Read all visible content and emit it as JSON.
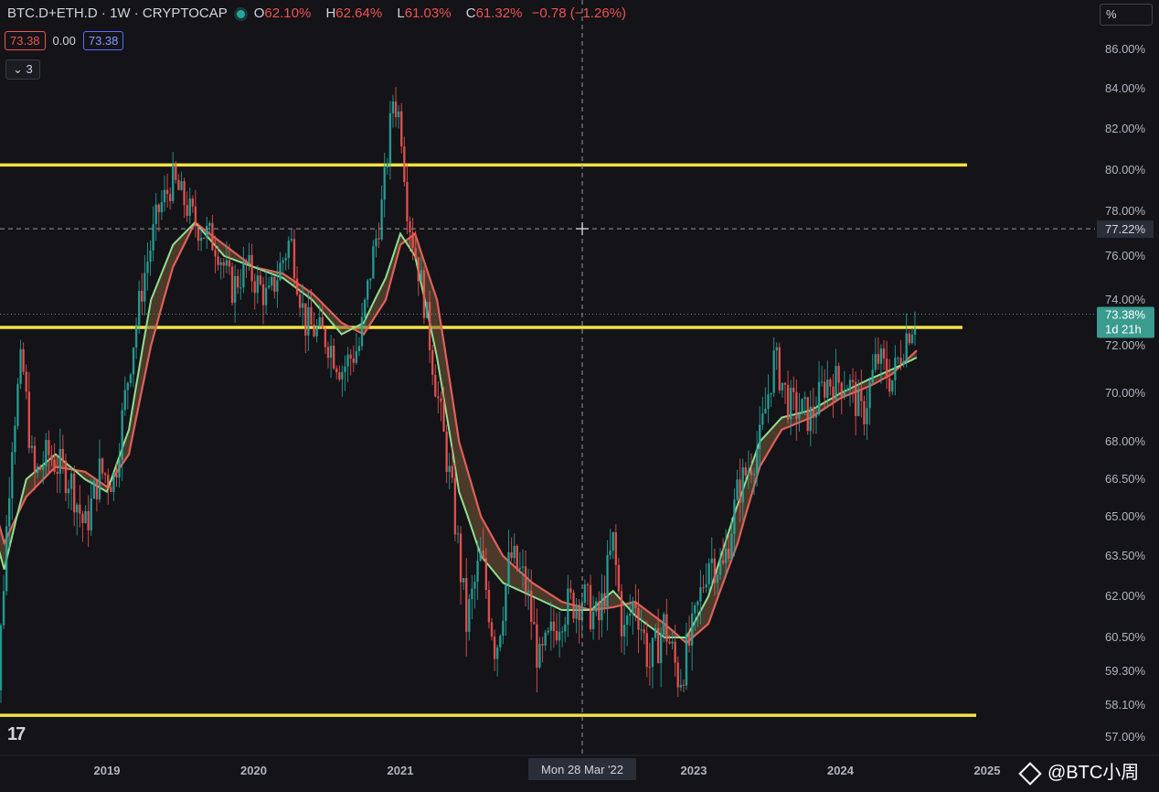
{
  "header": {
    "symbol": "BTC.D+ETH.D · 1W · CRYPTOCAP",
    "open_label": "O",
    "open": "62.10%",
    "high_label": "H",
    "high": "62.64%",
    "low_label": "L",
    "low": "61.03%",
    "close_label": "C",
    "close": "61.32%",
    "change": "−0.78 (−1.26%)"
  },
  "indicator": {
    "value1": "73.38",
    "value2": "0.00",
    "value3": "73.38"
  },
  "collapse_count": "3",
  "scale_mode": "%",
  "watermark": "@BTC小周",
  "colors": {
    "up": "#26a69a",
    "down": "#ef5350",
    "level": "#f2e244",
    "ma_fast": "#8fe08f",
    "ma_slow": "#e0605a"
  },
  "chart_data": {
    "type": "candlestick",
    "y_ticks": [
      "86.00%",
      "84.00%",
      "82.00%",
      "80.00%",
      "78.00%",
      "76.00%",
      "74.00%",
      "72.00%",
      "70.00%",
      "68.00%",
      "66.50%",
      "65.00%",
      "63.50%",
      "62.00%",
      "60.50%",
      "59.30%",
      "58.10%",
      "57.00%"
    ],
    "x_ticks": [
      "2019",
      "2020",
      "2021",
      "2023",
      "2024",
      "2025"
    ],
    "x_tick_years": [
      2019,
      2020,
      2021,
      2023,
      2024,
      2025
    ],
    "crosshair": {
      "x_label": "Mon 28 Mar '22",
      "x_year": 2022.24,
      "y_label": "77.22%",
      "y": 77.22
    },
    "last_price": {
      "value": "73.38%",
      "countdown": "1d 21h",
      "y": 73.38
    },
    "levels": [
      {
        "y": 80.25,
        "x_start": 2018.2,
        "x_end": 2022.6
      },
      {
        "y": 72.8,
        "x_start": 2018.2,
        "x_end": 2022.58
      },
      {
        "y": 57.75,
        "x_start": 2018.2,
        "x_end": 2022.65
      }
    ],
    "price_path": [
      [
        2018.2,
        64.0
      ],
      [
        2018.25,
        58.0
      ],
      [
        2018.35,
        68.0
      ],
      [
        2018.42,
        71.5
      ],
      [
        2018.5,
        66.5
      ],
      [
        2018.6,
        67.5
      ],
      [
        2018.75,
        66.5
      ],
      [
        2018.85,
        64.5
      ],
      [
        2018.95,
        66.8
      ],
      [
        2019.05,
        66.5
      ],
      [
        2019.15,
        71.0
      ],
      [
        2019.25,
        75.0
      ],
      [
        2019.35,
        78.0
      ],
      [
        2019.45,
        79.5
      ],
      [
        2019.6,
        77.5
      ],
      [
        2019.75,
        76.5
      ],
      [
        2019.85,
        74.5
      ],
      [
        2019.95,
        75.5
      ],
      [
        2020.1,
        74.0
      ],
      [
        2020.25,
        76.8
      ],
      [
        2020.35,
        73.0
      ],
      [
        2020.5,
        72.3
      ],
      [
        2020.6,
        71.0
      ],
      [
        2020.72,
        72.0
      ],
      [
        2020.8,
        75.5
      ],
      [
        2020.88,
        78.5
      ],
      [
        2020.95,
        83.5
      ],
      [
        2021.0,
        82.5
      ],
      [
        2021.05,
        78.0
      ],
      [
        2021.15,
        74.5
      ],
      [
        2021.25,
        70.0
      ],
      [
        2021.35,
        66.0
      ],
      [
        2021.45,
        61.0
      ],
      [
        2021.55,
        63.5
      ],
      [
        2021.65,
        60.0
      ],
      [
        2021.75,
        63.5
      ],
      [
        2021.85,
        62.5
      ],
      [
        2021.95,
        59.5
      ],
      [
        2022.1,
        61.5
      ],
      [
        2022.24,
        62.0
      ],
      [
        2022.35,
        61.0
      ],
      [
        2022.45,
        64.0
      ],
      [
        2022.52,
        60.5
      ],
      [
        2022.6,
        62.0
      ],
      [
        2022.7,
        59.5
      ],
      [
        2022.8,
        61.0
      ],
      [
        2022.9,
        59.0
      ],
      [
        2023.0,
        60.8
      ],
      [
        2023.1,
        63.5
      ],
      [
        2023.2,
        63.0
      ],
      [
        2023.3,
        66.0
      ],
      [
        2023.45,
        68.0
      ],
      [
        2023.55,
        71.5
      ],
      [
        2023.65,
        69.5
      ],
      [
        2023.8,
        69.0
      ],
      [
        2023.9,
        70.5
      ],
      [
        2024.05,
        70.5
      ],
      [
        2024.15,
        69.0
      ],
      [
        2024.25,
        71.5
      ],
      [
        2024.35,
        70.5
      ],
      [
        2024.45,
        72.5
      ],
      [
        2024.52,
        73.38
      ]
    ],
    "ma_fast_path": [
      [
        2018.2,
        65.0
      ],
      [
        2018.3,
        63.0
      ],
      [
        2018.45,
        66.5
      ],
      [
        2018.65,
        67.5
      ],
      [
        2018.85,
        66.5
      ],
      [
        2019.0,
        66.0
      ],
      [
        2019.15,
        68.5
      ],
      [
        2019.3,
        74.0
      ],
      [
        2019.45,
        76.5
      ],
      [
        2019.6,
        77.5
      ],
      [
        2019.8,
        76.0
      ],
      [
        2020.0,
        75.5
      ],
      [
        2020.2,
        75.0
      ],
      [
        2020.4,
        74.0
      ],
      [
        2020.6,
        72.5
      ],
      [
        2020.75,
        73.0
      ],
      [
        2020.9,
        75.0
      ],
      [
        2021.0,
        77.0
      ],
      [
        2021.1,
        76.0
      ],
      [
        2021.25,
        71.5
      ],
      [
        2021.4,
        66.0
      ],
      [
        2021.55,
        63.5
      ],
      [
        2021.7,
        62.5
      ],
      [
        2021.9,
        62.0
      ],
      [
        2022.1,
        61.5
      ],
      [
        2022.3,
        61.5
      ],
      [
        2022.45,
        62.2
      ],
      [
        2022.6,
        61.3
      ],
      [
        2022.8,
        60.5
      ],
      [
        2022.95,
        60.5
      ],
      [
        2023.1,
        62.0
      ],
      [
        2023.3,
        65.5
      ],
      [
        2023.45,
        68.0
      ],
      [
        2023.6,
        69.0
      ],
      [
        2023.8,
        69.3
      ],
      [
        2024.0,
        70.0
      ],
      [
        2024.2,
        70.6
      ],
      [
        2024.35,
        71.0
      ],
      [
        2024.52,
        71.5
      ]
    ],
    "ma_slow_path": [
      [
        2018.2,
        66.0
      ],
      [
        2018.3,
        64.0
      ],
      [
        2018.45,
        65.8
      ],
      [
        2018.65,
        67.0
      ],
      [
        2018.85,
        66.8
      ],
      [
        2019.0,
        66.2
      ],
      [
        2019.15,
        67.5
      ],
      [
        2019.3,
        72.0
      ],
      [
        2019.45,
        75.5
      ],
      [
        2019.6,
        77.5
      ],
      [
        2019.8,
        76.5
      ],
      [
        2020.0,
        75.5
      ],
      [
        2020.2,
        75.2
      ],
      [
        2020.4,
        74.3
      ],
      [
        2020.6,
        73.0
      ],
      [
        2020.75,
        72.5
      ],
      [
        2020.9,
        74.0
      ],
      [
        2021.0,
        76.5
      ],
      [
        2021.1,
        77.0
      ],
      [
        2021.25,
        74.0
      ],
      [
        2021.4,
        68.0
      ],
      [
        2021.55,
        65.0
      ],
      [
        2021.7,
        63.5
      ],
      [
        2021.9,
        62.5
      ],
      [
        2022.1,
        61.8
      ],
      [
        2022.3,
        61.5
      ],
      [
        2022.45,
        61.6
      ],
      [
        2022.6,
        61.8
      ],
      [
        2022.8,
        61.0
      ],
      [
        2022.95,
        60.3
      ],
      [
        2023.1,
        61.0
      ],
      [
        2023.3,
        64.0
      ],
      [
        2023.45,
        67.0
      ],
      [
        2023.6,
        68.5
      ],
      [
        2023.8,
        69.0
      ],
      [
        2024.0,
        69.8
      ],
      [
        2024.2,
        70.3
      ],
      [
        2024.35,
        70.8
      ],
      [
        2024.52,
        71.8
      ]
    ]
  }
}
